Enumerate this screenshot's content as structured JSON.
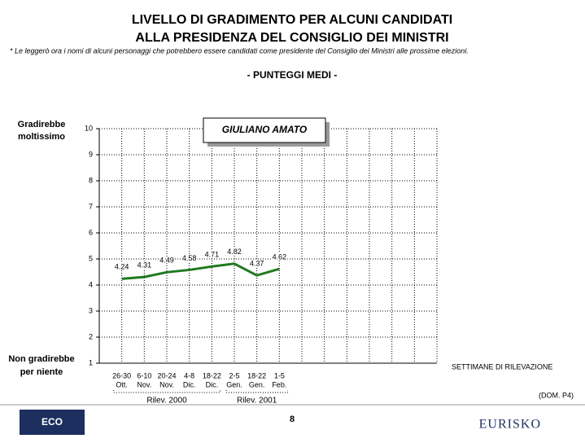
{
  "chart_data": {
    "type": "line",
    "title": [
      "LIVELLO DI GRADIMENTO PER ALCUNI CANDIDATI",
      "ALLA PRESIDENZA DEL CONSIGLIO DEI MINISTRI"
    ],
    "note": "* Le leggerò ora i nomi di alcuni personaggi che potrebbero essere candidati come presidente del Consiglio dei Ministri alle prossime elezioni.",
    "subtitle": "- PUNTEGGI MEDI -",
    "y_top_label": [
      "Gradirebbe",
      "moltissimo"
    ],
    "y_bottom_label": [
      "Non gradirebbe",
      "per niente"
    ],
    "x_axis_label": "SETTIMANE DI RILEVAZIONE",
    "source": "(DOM. P4)",
    "page_number": "8",
    "logo_left": "ECO",
    "logo_right": "EURISKO",
    "categories": [
      [
        "26-30",
        "Ott."
      ],
      [
        "6-10",
        "Nov."
      ],
      [
        "20-24",
        "Nov."
      ],
      [
        "4-8",
        "Dic."
      ],
      [
        "18-22",
        "Dic."
      ],
      [
        "2-5",
        "Gen."
      ],
      [
        "18-22",
        "Gen."
      ],
      [
        "1-5",
        "Feb."
      ]
    ],
    "groups": [
      {
        "label": "Rilev. 2000",
        "from": 0,
        "to": 4
      },
      {
        "label": "Rilev. 2001",
        "from": 5,
        "to": 7
      }
    ],
    "series": [
      {
        "name": "GIULIANO AMATO",
        "color": "#1f7a1f",
        "values": [
          4.24,
          4.31,
          4.49,
          4.58,
          4.71,
          4.82,
          4.37,
          4.62
        ]
      }
    ],
    "ylim": [
      1,
      10
    ],
    "yticks": [
      1,
      2,
      3,
      4,
      5,
      6,
      7,
      8,
      9,
      10
    ],
    "grid": true
  }
}
